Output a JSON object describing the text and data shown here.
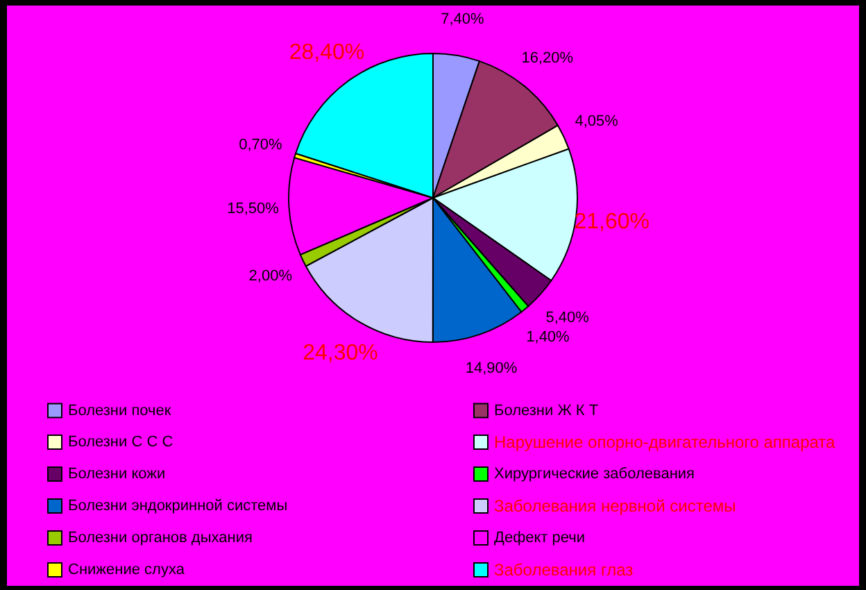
{
  "chart_data": {
    "type": "pie",
    "categories": [
      "Болезни почек",
      "Болезни Ж К Т",
      "Болезни С С С",
      "Нарушение опорно-двигательного аппарата",
      "Болезни кожи",
      "Хирургические заболевания",
      "Болезни эндокринной системы",
      "Заболевания нервной системы",
      "Болезни органов дыхания",
      "Дефект речи",
      "Снижение слуха",
      "Заболевания глаз"
    ],
    "values": [
      7.4,
      16.2,
      4.05,
      21.6,
      5.4,
      1.4,
      14.9,
      24.3,
      2.0,
      15.5,
      0.7,
      28.4
    ],
    "value_labels": [
      "7,40%",
      "16,20%",
      "4,05%",
      "21,60%",
      "5,40%",
      "1,40%",
      "14,90%",
      "24,30%",
      "2,00%",
      "15,50%",
      "0,70%",
      "28,40%"
    ],
    "colors": [
      "#9999ff",
      "#993366",
      "#ffffcc",
      "#ccffff",
      "#660066",
      "#00ff00",
      "#0066cc",
      "#ccccff",
      "#99cc00",
      "#ff00ff",
      "#ffff00",
      "#00ffff"
    ],
    "legend": "bottom"
  }
}
